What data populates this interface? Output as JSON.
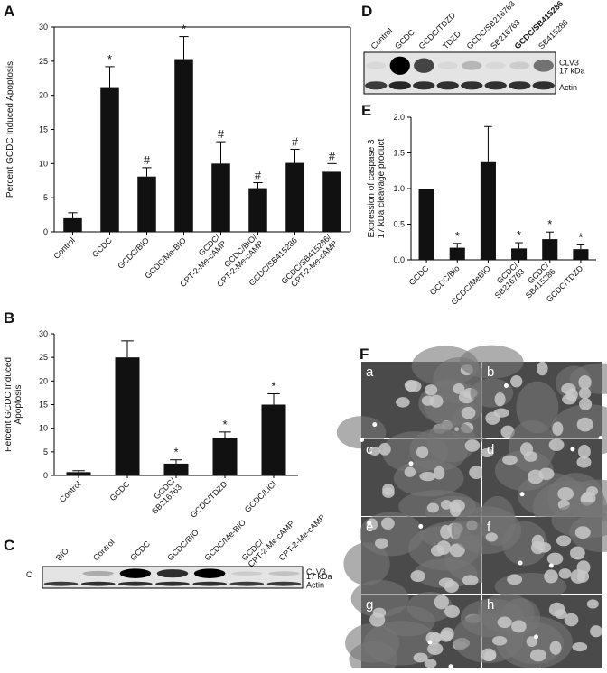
{
  "chart_data": [
    {
      "type": "bar",
      "panel": "A",
      "y_label": "Percent GCDC Induced Apoptosis",
      "frame": true,
      "categories": [
        "Control",
        "GCDC",
        "GCDC/BIO",
        "GCDC/Me-BIO",
        "GCDC/\nCPT-2-Me-cAMP",
        "GCDC/BIO/\nCPT-2-Me-cAMP",
        "GCDC/SB415286",
        "GCDC/SB415286/\nCPT-2-Me-cAMP"
      ],
      "values": [
        2,
        21.2,
        8.1,
        25.3,
        10,
        6.4,
        10.1,
        8.8
      ],
      "errors": [
        0.8,
        3,
        1.3,
        3.3,
        3.2,
        0.8,
        2,
        1.2
      ],
      "markers": [
        null,
        "*",
        "#",
        "*",
        "#",
        "#",
        "#",
        "#"
      ],
      "color": "#111111",
      "ylim": [
        0,
        30
      ],
      "yticks": [
        0,
        5,
        10,
        15,
        20,
        25,
        30
      ]
    },
    {
      "type": "bar",
      "panel": "B",
      "y_label": "Percent GCDC Induced\nApoptosis",
      "frame": false,
      "categories": [
        "Control",
        "GCDC",
        "GCDC/\nSB216763",
        "GCDC/TDZD",
        "GCDC/LiCl"
      ],
      "values": [
        0.7,
        25,
        2.5,
        8,
        15
      ],
      "errors": [
        0.3,
        3.5,
        0.8,
        1.2,
        2.3
      ],
      "markers": [
        null,
        null,
        "*",
        "*",
        "*"
      ],
      "color": "#111111",
      "ylim": [
        0,
        30
      ],
      "yticks": [
        0,
        5,
        10,
        15,
        20,
        25,
        30
      ]
    },
    {
      "type": "bar",
      "panel": "E",
      "y_label": "Expression of caspase 3\n17 kDa cleavage product",
      "frame": false,
      "categories": [
        "GCDC",
        "GCDC/Bio",
        "GCDC/MeBIO",
        "GCDC/\nSB216763",
        "GCDC/\nSB415286",
        "GCDC/TDZD"
      ],
      "values": [
        1.0,
        0.17,
        1.37,
        0.16,
        0.29,
        0.15
      ],
      "errors": [
        0,
        0.06,
        0.5,
        0.08,
        0.1,
        0.06
      ],
      "markers": [
        null,
        "*",
        null,
        "*",
        "*",
        "*"
      ],
      "color": "#111111",
      "ylim": [
        0,
        2
      ],
      "yticks": [
        {
          "value": 0,
          "label": "0.0"
        },
        0.5,
        {
          "value": 1,
          "label": "1.0"
        },
        1.5,
        {
          "value": 2,
          "label": "2.0"
        }
      ]
    }
  ],
  "blots": [
    {
      "panel": "C",
      "inner_label": "C",
      "lanes": [
        "BIO",
        "Control",
        "GCDC",
        "GCDC/BIO",
        "GCDC/Me-BIO",
        "GCDC/\nCPT-2-Me-cAMP",
        "CPT-2-Me-cAMP"
      ],
      "bands": [
        "CLV3",
        "17 kDa",
        "Actin"
      ]
    },
    {
      "panel": "D",
      "lanes": [
        "Control",
        "GCDC",
        "GCDC/TDZD",
        "TDZD",
        "GCDC/SB216763",
        "SB216763",
        "GCDC/SB415286",
        "SB415286"
      ],
      "bands": [
        "CLV3",
        "17 kDa",
        "Actin"
      ]
    }
  ],
  "micrographs": {
    "panel": "F",
    "labels": [
      "a",
      "b",
      "c",
      "d",
      "e",
      "f",
      "g",
      "h"
    ]
  }
}
